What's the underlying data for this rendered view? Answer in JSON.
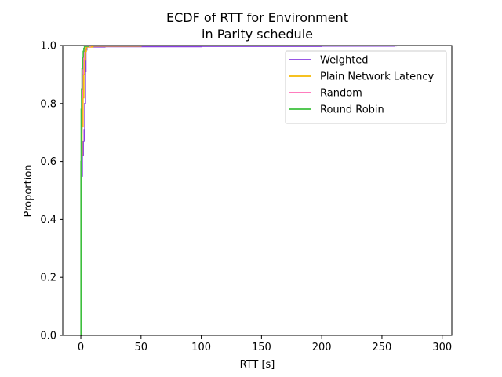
{
  "chart_data": {
    "type": "line",
    "subtype": "ecdf-step",
    "title_lines": [
      "ECDF of RTT for Environment",
      "in Parity schedule"
    ],
    "xlabel": "RTT [s]",
    "ylabel": "Proportion",
    "xlim": [
      -15,
      308
    ],
    "ylim": [
      0.0,
      1.0
    ],
    "xticks": [
      0,
      50,
      100,
      150,
      200,
      250,
      300
    ],
    "yticks": [
      0.0,
      0.2,
      0.4,
      0.6,
      0.8,
      1.0
    ],
    "xtick_labels": [
      "0",
      "50",
      "100",
      "150",
      "200",
      "250",
      "300"
    ],
    "ytick_labels": [
      "0.0",
      "0.2",
      "0.4",
      "0.6",
      "0.8",
      "1.0"
    ],
    "grid": false,
    "legend_position": "top-right",
    "series": [
      {
        "name": "Weighted",
        "color": "#8a3ee0",
        "x": [
          0.0,
          0.3,
          0.7,
          1.2,
          2.0,
          2.8,
          3.3,
          3.8,
          4.2,
          5.0,
          20.0,
          100.0,
          200.0,
          260.0,
          262.0
        ],
        "y": [
          0.0,
          0.35,
          0.55,
          0.62,
          0.67,
          0.71,
          0.8,
          0.91,
          0.985,
          0.995,
          0.996,
          0.997,
          0.998,
          0.999,
          1.0
        ]
      },
      {
        "name": "Plain Network Latency",
        "color": "#f5b800",
        "x": [
          0.0,
          0.2,
          0.5,
          1.0,
          1.8,
          2.5,
          3.2,
          3.9,
          4.5,
          10.0,
          50.0
        ],
        "y": [
          0.0,
          0.45,
          0.62,
          0.72,
          0.82,
          0.9,
          0.95,
          0.98,
          0.995,
          0.998,
          1.0
        ]
      },
      {
        "name": "Random",
        "color": "#ff69b4",
        "x": [
          0.0,
          0.2,
          0.5,
          0.9,
          1.4,
          2.0,
          2.6,
          3.0,
          3.5,
          8.0
        ],
        "y": [
          0.0,
          0.5,
          0.7,
          0.82,
          0.9,
          0.95,
          0.98,
          0.99,
          0.997,
          1.0
        ]
      },
      {
        "name": "Round Robin",
        "color": "#3cc03c",
        "x": [
          0.0,
          0.1,
          0.3,
          0.6,
          1.0,
          1.5,
          2.0,
          2.5,
          3.0,
          6.0
        ],
        "y": [
          0.0,
          0.6,
          0.78,
          0.85,
          0.92,
          0.96,
          0.98,
          0.99,
          0.997,
          1.0
        ]
      }
    ]
  }
}
